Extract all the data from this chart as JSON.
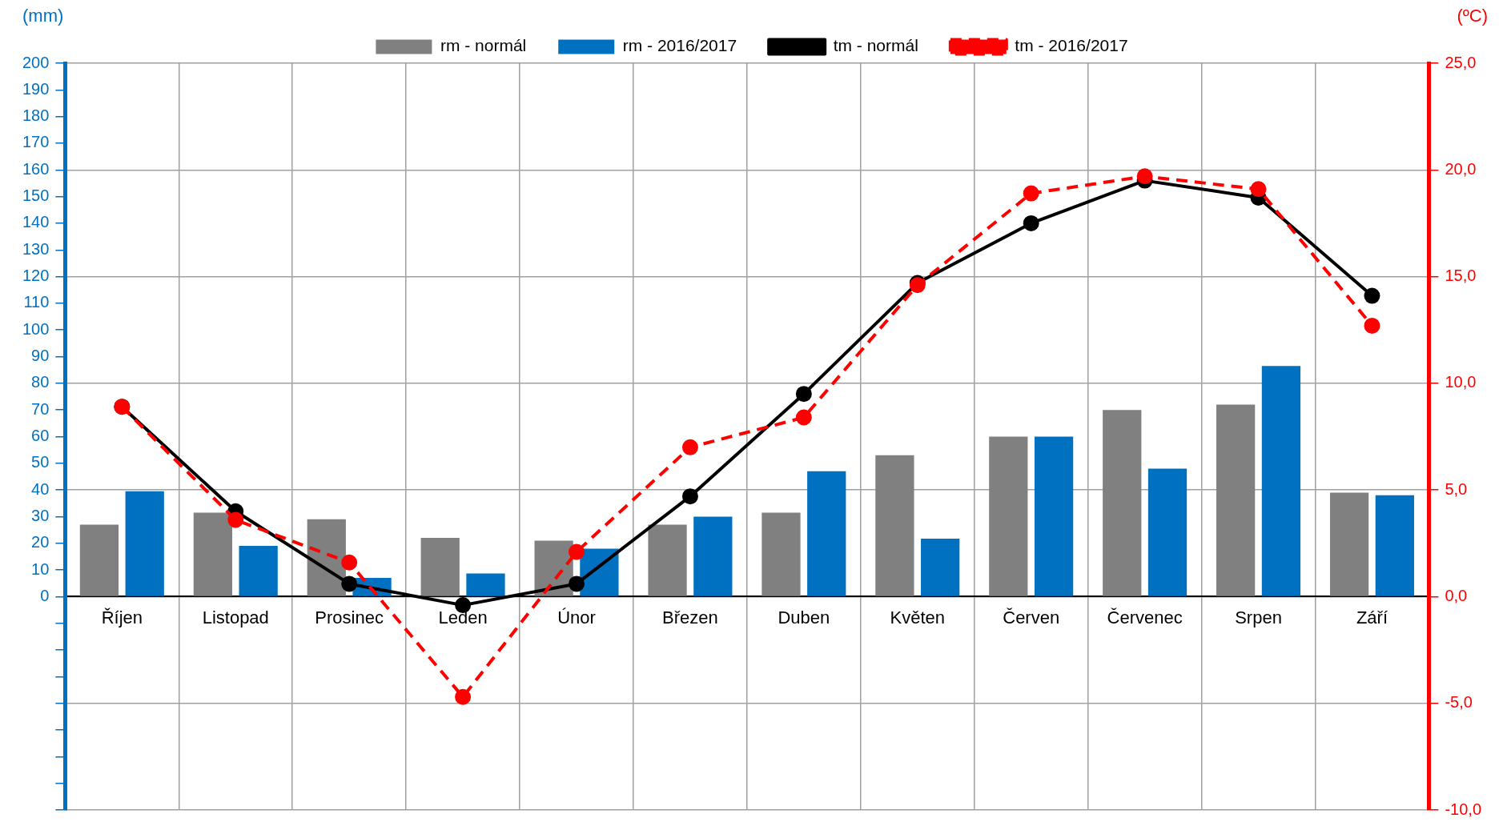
{
  "chart_data": {
    "type": "bar",
    "ylabel": "(mm)",
    "y2label": "(ºC)",
    "categories": [
      "Říjen",
      "Listopad",
      "Prosinec",
      "Leden",
      "Únor",
      "Březen",
      "Duben",
      "Květen",
      "Červen",
      "Červenec",
      "Srpen",
      "Září"
    ],
    "series": [
      {
        "name": "rm - normál",
        "color": "#808080",
        "values": [
          27,
          31.5,
          29,
          22,
          21,
          27,
          31.5,
          53,
          60,
          70,
          72,
          39
        ]
      },
      {
        "name": "rm - 2016/2017",
        "color": "#0070c0",
        "values": [
          39.5,
          19,
          7,
          8.7,
          18,
          30,
          47,
          21.7,
          60,
          48,
          86.5,
          38
        ]
      },
      {
        "name": "tm - normál",
        "type": "line",
        "axis": "y2",
        "color": "#000000",
        "marker": "circle",
        "line_style": "solid",
        "values": [
          8.9,
          4.0,
          0.6,
          -0.4,
          0.6,
          4.7,
          9.5,
          14.7,
          17.5,
          19.5,
          18.7,
          14.1
        ]
      },
      {
        "name": "tm - 2016/2017",
        "type": "line",
        "axis": "y2",
        "color": "#ff0000",
        "marker": "circle",
        "line_style": "dashed",
        "values": [
          8.9,
          3.6,
          1.6,
          -4.7,
          2.1,
          7.0,
          8.4,
          14.6,
          18.9,
          19.7,
          19.1,
          12.7
        ]
      }
    ],
    "ylim": [
      -80,
      200
    ],
    "yticks": [
      {
        "value": -80,
        "label": null
      },
      {
        "value": -70,
        "label": null
      },
      {
        "value": -60,
        "label": null
      },
      {
        "value": -50,
        "label": null
      },
      {
        "value": -40,
        "label": null
      },
      {
        "value": -30,
        "label": null
      },
      {
        "value": -20,
        "label": null
      },
      {
        "value": -10,
        "label": null
      },
      0,
      10,
      20,
      30,
      40,
      50,
      60,
      70,
      80,
      90,
      100,
      110,
      120,
      130,
      140,
      150,
      160,
      170,
      180,
      190,
      200
    ],
    "y2lim": [
      -10,
      25
    ],
    "y2ticks": [
      {
        "value": -10,
        "label": "-10,0"
      },
      {
        "value": -5,
        "label": "-5,0"
      },
      {
        "value": 0,
        "label": "0,0"
      },
      {
        "value": 5,
        "label": "5,0"
      },
      {
        "value": 10,
        "label": "10,0"
      },
      {
        "value": 15,
        "label": "15,0"
      },
      {
        "value": 20,
        "label": "20,0"
      },
      {
        "value": 25,
        "label": "25,0"
      }
    ],
    "grid": true,
    "legend": "top"
  }
}
